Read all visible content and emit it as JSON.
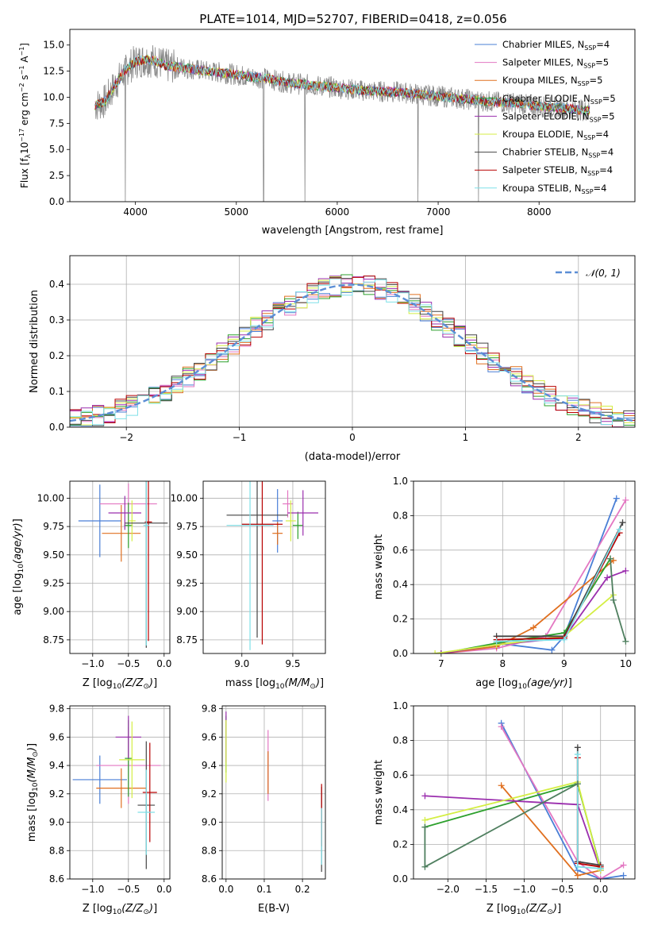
{
  "title": "PLATE=1014, MJD=52707, FIBERID=0418, z=0.056",
  "colors": {
    "chabrier_miles": "#4a7fd6",
    "salpeter_miles": "#e377c2",
    "kroupa_miles": "#e07020",
    "chabrier_elodie": "#2ca02c",
    "salpeter_elodie": "#9b2fae",
    "kroupa_elodie": "#d4ee44",
    "chabrier_stelib": "#444444",
    "salpeter_stelib": "#b80000",
    "kroupa_stelib": "#7fe0e8",
    "data": "#888888",
    "normal": "#5b8ed6",
    "chabrier_elodie_weight": "#4f7f5f"
  },
  "legend": {
    "models": [
      {
        "name": "Chabrier MILES, N",
        "n": "=4",
        "color_key": "chabrier_miles"
      },
      {
        "name": "Salpeter MILES, N",
        "n": "=5",
        "color_key": "salpeter_miles"
      },
      {
        "name": "Kroupa MILES, N",
        "n": "=5",
        "color_key": "kroupa_miles"
      },
      {
        "name": "Chabrier ELODIE, N",
        "n": "=5",
        "color_key": "chabrier_elodie"
      },
      {
        "name": "Salpeter ELODIE, N",
        "n": "=5",
        "color_key": "salpeter_elodie"
      },
      {
        "name": "Kroupa ELODIE, N",
        "n": "=4",
        "color_key": "kroupa_elodie"
      },
      {
        "name": "Chabrier STELIB, N",
        "n": "=4",
        "color_key": "chabrier_stelib"
      },
      {
        "name": "Salpeter STELIB, N",
        "n": "=4",
        "color_key": "salpeter_stelib"
      },
      {
        "name": "Kroupa STELIB, N",
        "n": "=4",
        "color_key": "kroupa_stelib"
      }
    ],
    "sub": "SSP",
    "normal_label": "𝒩(0, 1)"
  },
  "chart_data": [
    {
      "panel": "spectrum",
      "type": "line",
      "xlabel": "wavelength [Angstrom, rest frame]",
      "ylabel_main": "Flux [f",
      "ylabel_tail": "10",
      "xlim": [
        3350,
        8950
      ],
      "ylim": [
        0,
        16.5
      ],
      "xticks": [
        4000,
        5000,
        6000,
        7000,
        8000
      ],
      "yticks": [
        0.0,
        2.5,
        5.0,
        7.5,
        10.0,
        12.5,
        15.0
      ],
      "continuum": {
        "x": [
          3600,
          3700,
          3800,
          3900,
          4000,
          4100,
          4200,
          4300,
          4500,
          4700,
          4900,
          5100,
          5300,
          5500,
          5700,
          6000,
          6300,
          6600,
          6900,
          7200,
          7500,
          7800,
          8000,
          8200,
          8400,
          8500
        ],
        "y": [
          9.2,
          9.6,
          11.2,
          12.6,
          13.4,
          13.6,
          13.5,
          13.0,
          12.8,
          12.5,
          12.3,
          12.0,
          11.8,
          11.4,
          11.2,
          10.9,
          10.6,
          10.5,
          10.2,
          9.9,
          9.6,
          9.4,
          9.1,
          9.0,
          8.8,
          8.7
        ]
      },
      "absorption_features": [
        {
          "x": 3900,
          "y": 0.0
        },
        {
          "x": 5270,
          "y": 0.0
        },
        {
          "x": 5680,
          "y": 0.0
        },
        {
          "x": 6800,
          "y": 0.0
        },
        {
          "x": 7400,
          "y": 0.0
        }
      ]
    },
    {
      "panel": "residuals",
      "type": "step",
      "xlabel": "(data-model)/error",
      "ylabel": "Normed distribution",
      "xlim": [
        -2.5,
        2.5
      ],
      "ylim": [
        0,
        0.48
      ],
      "xticks": [
        -2,
        -1,
        0,
        1,
        2
      ],
      "yticks": [
        0.0,
        0.1,
        0.2,
        0.3,
        0.4
      ],
      "bin_width": 0.1,
      "normal": {
        "mu": 0,
        "sigma": 1
      }
    },
    {
      "panel": "age_vs_Z",
      "type": "errorbar",
      "xlabel": "Z [log",
      "xlabel_sub": "10",
      "xlabel_tail": "(Z/Z",
      "ylabel": "age  [log",
      "xlim": [
        -1.32,
        0.08
      ],
      "ylim": [
        8.63,
        10.15
      ],
      "xticks": [
        -1.0,
        -0.5,
        0.0
      ],
      "yticks": [
        8.75,
        9.0,
        9.25,
        9.5,
        9.75,
        10.0
      ],
      "points": [
        {
          "model": "chabrier_miles",
          "x": -0.9,
          "xerr": 0.3,
          "y": 9.8,
          "yerr": 0.32
        },
        {
          "model": "salpeter_miles",
          "x": -0.5,
          "xerr": 0.4,
          "y": 9.95,
          "yerr": 0.18
        },
        {
          "model": "kroupa_miles",
          "x": -0.6,
          "xerr": 0.27,
          "y": 9.69,
          "yerr": 0.25
        },
        {
          "model": "chabrier_elodie",
          "x": -0.5,
          "xerr": 0.06,
          "y": 9.76,
          "yerr": 0.2
        },
        {
          "model": "salpeter_elodie",
          "x": -0.55,
          "xerr": 0.23,
          "y": 9.87,
          "yerr": 0.15
        },
        {
          "model": "kroupa_elodie",
          "x": -0.45,
          "xerr": 0.05,
          "y": 9.8,
          "yerr": 0.18
        },
        {
          "model": "chabrier_stelib",
          "x": -0.25,
          "xerr": 0.3,
          "y": 9.78,
          "yerr": 1.1
        },
        {
          "model": "salpeter_stelib",
          "x": -0.22,
          "xerr": 0.05,
          "y": 9.79,
          "yerr": 1.05
        },
        {
          "model": "kroupa_stelib",
          "x": -0.25,
          "xerr": 0.04,
          "y": 9.76,
          "yerr": 1.06
        }
      ]
    },
    {
      "panel": "age_vs_mass",
      "type": "errorbar",
      "xlabel": "mass [log",
      "xlim": [
        8.62,
        9.82
      ],
      "ylim": [
        8.63,
        10.15
      ],
      "xticks": [
        9.0,
        9.5
      ],
      "yticks": [
        8.75,
        9.0,
        9.25,
        9.5,
        9.75,
        10.0
      ],
      "points": [
        {
          "model": "chabrier_miles",
          "x": 9.35,
          "xerr": 0.05,
          "y": 9.8,
          "yerr": 0.28
        },
        {
          "model": "salpeter_miles",
          "x": 9.45,
          "xerr": 0.05,
          "y": 9.95,
          "yerr": 0.12
        },
        {
          "model": "kroupa_miles",
          "x": 9.35,
          "xerr": 0.05,
          "y": 9.69,
          "yerr": 0.1
        },
        {
          "model": "chabrier_elodie",
          "x": 9.55,
          "xerr": 0.05,
          "y": 9.76,
          "yerr": 0.12
        },
        {
          "model": "salpeter_elodie",
          "x": 9.6,
          "xerr": 0.15,
          "y": 9.87,
          "yerr": 0.2
        },
        {
          "model": "kroupa_elodie",
          "x": 9.48,
          "xerr": 0.05,
          "y": 9.8,
          "yerr": 0.18
        },
        {
          "model": "chabrier_stelib",
          "x": 9.15,
          "xerr": 0.3,
          "y": 9.85,
          "yerr": 1.08
        },
        {
          "model": "salpeter_stelib",
          "x": 9.2,
          "xerr": 0.2,
          "y": 9.77,
          "yerr": 1.06
        },
        {
          "model": "kroupa_stelib",
          "x": 9.08,
          "xerr": 0.23,
          "y": 9.76,
          "yerr": 1.1
        }
      ]
    },
    {
      "panel": "mass_weight_vs_age",
      "type": "line",
      "xlabel": "age  [log",
      "ylabel": "mass weight",
      "xlim": [
        6.55,
        10.15
      ],
      "ylim": [
        0,
        1.0
      ],
      "xticks": [
        7,
        8,
        9,
        10
      ],
      "yticks": [
        0.0,
        0.2,
        0.4,
        0.6,
        0.8,
        1.0
      ],
      "series": [
        {
          "model": "chabrier_miles",
          "x": [
            7.9,
            8.8,
            9.0,
            9.85
          ],
          "y": [
            0.06,
            0.02,
            0.1,
            0.9
          ]
        },
        {
          "model": "salpeter_miles",
          "x": [
            7.0,
            7.9,
            8.7,
            10.0
          ],
          "y": [
            0.0,
            0.03,
            0.1,
            0.89
          ]
        },
        {
          "model": "kroupa_miles",
          "x": [
            7.0,
            7.9,
            8.5,
            9.8
          ],
          "y": [
            0.0,
            0.04,
            0.15,
            0.54
          ]
        },
        {
          "model": "chabrier_elodie",
          "x": [
            7.0,
            7.9,
            9.0,
            9.75
          ],
          "y": [
            0.0,
            0.06,
            0.12,
            0.55
          ]
        },
        {
          "model": "salpeter_elodie",
          "x": [
            7.0,
            7.9,
            9.0,
            9.7,
            10.0
          ],
          "y": [
            0.0,
            0.05,
            0.09,
            0.44,
            0.48
          ]
        },
        {
          "model": "kroupa_elodie",
          "x": [
            6.9,
            7.9,
            9.0,
            9.8
          ],
          "y": [
            0.0,
            0.05,
            0.1,
            0.34
          ]
        },
        {
          "model": "chabrier_stelib",
          "x": [
            7.9,
            9.0,
            9.95
          ],
          "y": [
            0.1,
            0.1,
            0.76
          ]
        },
        {
          "model": "salpeter_stelib",
          "x": [
            7.9,
            9.0,
            9.9
          ],
          "y": [
            0.08,
            0.09,
            0.7
          ]
        },
        {
          "model": "kroupa_stelib",
          "x": [
            7.9,
            9.0,
            9.9
          ],
          "y": [
            0.07,
            0.08,
            0.72
          ]
        },
        {
          "model": "chabrier_elodie_weight",
          "x": [
            9.75,
            9.8,
            10.0
          ],
          "y": [
            0.55,
            0.31,
            0.07
          ]
        }
      ]
    },
    {
      "panel": "mass_vs_Z",
      "type": "errorbar",
      "xlabel": "Z [log",
      "ylabel": "mass [log",
      "xlim": [
        -1.32,
        0.08
      ],
      "ylim": [
        8.6,
        9.82
      ],
      "xticks": [
        -1.0,
        -0.5,
        0.0
      ],
      "yticks": [
        8.6,
        8.8,
        9.0,
        9.2,
        9.4,
        9.6,
        9.8
      ],
      "points": [
        {
          "model": "chabrier_miles",
          "x": -0.9,
          "xerr": 0.38,
          "y": 9.3,
          "yerr": 0.17
        },
        {
          "model": "salpeter_miles",
          "x": -0.5,
          "xerr": 0.45,
          "y": 9.4,
          "yerr": 0.27
        },
        {
          "model": "kroupa_miles",
          "x": -0.6,
          "xerr": 0.35,
          "y": 9.24,
          "yerr": 0.14
        },
        {
          "model": "chabrier_elodie",
          "x": -0.5,
          "xerr": 0.05,
          "y": 9.45,
          "yerr": 0.27
        },
        {
          "model": "salpeter_elodie",
          "x": -0.5,
          "xerr": 0.18,
          "y": 9.6,
          "yerr": 0.15
        },
        {
          "model": "kroupa_elodie",
          "x": -0.45,
          "xerr": 0.18,
          "y": 9.44,
          "yerr": 0.27
        },
        {
          "model": "chabrier_stelib",
          "x": -0.25,
          "xerr": 0.12,
          "y": 9.12,
          "yerr": 0.45
        },
        {
          "model": "salpeter_stelib",
          "x": -0.2,
          "xerr": 0.1,
          "y": 9.21,
          "yerr": 0.35
        },
        {
          "model": "kroupa_stelib",
          "x": -0.25,
          "xerr": 0.12,
          "y": 9.07,
          "yerr": 0.3
        }
      ]
    },
    {
      "panel": "mass_vs_ebv",
      "type": "errorbar",
      "xlabel": "E(B-V)",
      "xlim": [
        -0.01,
        0.26
      ],
      "ylim": [
        8.6,
        9.82
      ],
      "xticks": [
        0.0,
        0.1,
        0.2
      ],
      "yticks": [
        8.6,
        8.8,
        9.0,
        9.2,
        9.4,
        9.6,
        9.8
      ],
      "points": [
        {
          "model": "chabrier_miles",
          "x": 0.11,
          "y": 9.35,
          "yerr": 0.15
        },
        {
          "model": "salpeter_miles",
          "x": 0.11,
          "y": 9.4,
          "yerr": 0.25
        },
        {
          "model": "kroupa_miles",
          "x": 0.11,
          "y": 9.35,
          "yerr": 0.15
        },
        {
          "model": "chabrier_elodie",
          "x": 0.0,
          "y": 9.55,
          "yerr": 0.2
        },
        {
          "model": "salpeter_elodie",
          "x": 0.0,
          "y": 9.6,
          "yerr": 0.18
        },
        {
          "model": "kroupa_elodie",
          "x": 0.0,
          "y": 9.5,
          "yerr": 0.22
        },
        {
          "model": "chabrier_stelib",
          "x": 0.25,
          "y": 8.95,
          "yerr": 0.3
        },
        {
          "model": "salpeter_stelib",
          "x": 0.25,
          "y": 9.05,
          "yerr": 0.22
        },
        {
          "model": "kroupa_stelib",
          "x": 0.25,
          "y": 8.9,
          "yerr": 0.2
        }
      ]
    },
    {
      "panel": "mass_weight_vs_Z",
      "type": "line",
      "xlabel": "Z [log",
      "ylabel": "mass weight",
      "xlim": [
        -2.45,
        0.45
      ],
      "ylim": [
        0,
        1.0
      ],
      "xticks": [
        -2.0,
        -1.5,
        -1.0,
        -0.5,
        0.0
      ],
      "yticks": [
        0.0,
        0.2,
        0.4,
        0.6,
        0.8,
        1.0
      ],
      "series": [
        {
          "model": "chabrier_miles",
          "x": [
            -1.3,
            -0.3,
            0.0,
            0.3
          ],
          "y": [
            0.9,
            0.05,
            0.0,
            0.02
          ]
        },
        {
          "model": "salpeter_miles",
          "x": [
            -1.3,
            -0.3,
            0.0,
            0.3
          ],
          "y": [
            0.88,
            0.1,
            0.0,
            0.08
          ]
        },
        {
          "model": "kroupa_miles",
          "x": [
            -1.3,
            -0.3,
            0.0
          ],
          "y": [
            0.54,
            0.02,
            0.05
          ]
        },
        {
          "model": "chabrier_elodie",
          "x": [
            -2.3,
            -0.3,
            0.0
          ],
          "y": [
            0.3,
            0.55,
            0.06
          ]
        },
        {
          "model": "salpeter_elodie",
          "x": [
            -2.3,
            -0.3,
            0.0
          ],
          "y": [
            0.48,
            0.43,
            0.05
          ]
        },
        {
          "model": "kroupa_elodie",
          "x": [
            -2.3,
            -0.3,
            0.0
          ],
          "y": [
            0.34,
            0.56,
            0.05
          ]
        },
        {
          "model": "chabrier_stelib",
          "x": [
            -0.3,
            -0.3,
            0.0
          ],
          "y": [
            0.76,
            0.1,
            0.08
          ]
        },
        {
          "model": "salpeter_stelib",
          "x": [
            -0.3,
            -0.3,
            0.0
          ],
          "y": [
            0.7,
            0.09,
            0.07
          ]
        },
        {
          "model": "kroupa_stelib",
          "x": [
            -0.3,
            -0.3,
            0.0
          ],
          "y": [
            0.72,
            0.07,
            0.06
          ]
        },
        {
          "model": "chabrier_elodie_weight",
          "x": [
            -2.3,
            -2.3,
            -0.3
          ],
          "y": [
            0.3,
            0.07,
            0.55
          ]
        }
      ]
    }
  ]
}
